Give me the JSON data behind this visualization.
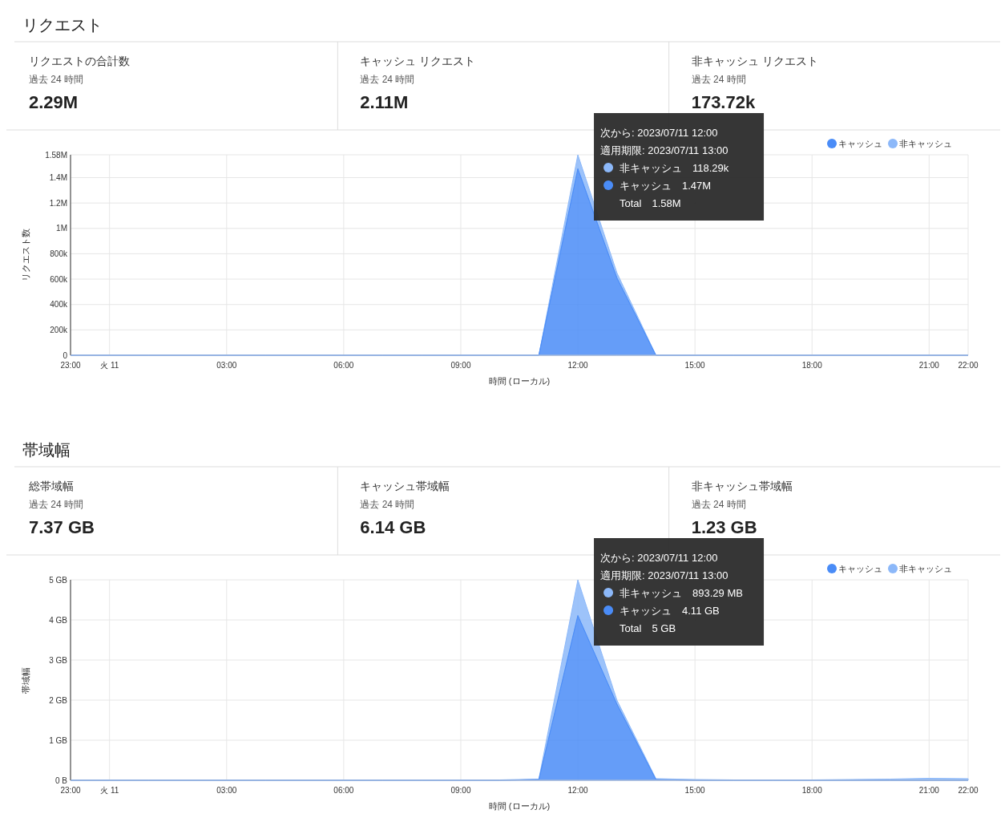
{
  "chart_data": [
    {
      "type": "other",
      "title": "リクエスト",
      "categories": [
        "リクエストの合計数",
        "キャッシュ リクエスト",
        "非キャッシュ リクエスト"
      ],
      "subtitle": "過去 24 時間",
      "value_labels": [
        "2.29M",
        "2.11M",
        "173.72k"
      ]
    },
    {
      "type": "area",
      "stacked": true,
      "ylabel": "リクエスト数",
      "xlabel": "時間 (ローカル)",
      "grid": true,
      "legend": "top right",
      "x": [
        "2023-07-10T23:00",
        "2023-07-11T00:00",
        "2023-07-11T01:00",
        "2023-07-11T02:00",
        "2023-07-11T03:00",
        "2023-07-11T04:00",
        "2023-07-11T05:00",
        "2023-07-11T06:00",
        "2023-07-11T07:00",
        "2023-07-11T08:00",
        "2023-07-11T09:00",
        "2023-07-11T10:00",
        "2023-07-11T11:00",
        "2023-07-11T12:00",
        "2023-07-11T13:00",
        "2023-07-11T14:00",
        "2023-07-11T15:00",
        "2023-07-11T16:00",
        "2023-07-11T17:00",
        "2023-07-11T18:00",
        "2023-07-11T19:00",
        "2023-07-11T20:00",
        "2023-07-11T21:00",
        "2023-07-11T22:00"
      ],
      "xlim": [
        "2023-07-10T23:00",
        "2023-07-11T22:00"
      ],
      "xticks": [
        {
          "value": "2023-07-10T23:00",
          "label": "23:00"
        },
        {
          "value": "2023-07-11T00:00",
          "label": "火 11"
        },
        {
          "value": "2023-07-11T03:00",
          "label": "03:00"
        },
        {
          "value": "2023-07-11T06:00",
          "label": "06:00"
        },
        {
          "value": "2023-07-11T09:00",
          "label": "09:00"
        },
        {
          "value": "2023-07-11T12:00",
          "label": "12:00"
        },
        {
          "value": "2023-07-11T15:00",
          "label": "15:00"
        },
        {
          "value": "2023-07-11T18:00",
          "label": "18:00"
        },
        {
          "value": "2023-07-11T21:00",
          "label": "21:00"
        },
        {
          "value": "2023-07-11T22:00",
          "label": "22:00"
        }
      ],
      "ylim": [
        0,
        1580000
      ],
      "yticks": [
        0,
        {
          "value": 200000,
          "label": "200k"
        },
        {
          "value": 400000,
          "label": "400k"
        },
        {
          "value": 600000,
          "label": "600k"
        },
        {
          "value": 800000,
          "label": "800k"
        },
        {
          "value": 1000000,
          "label": "1M"
        },
        {
          "value": 1200000,
          "label": "1.2M"
        },
        {
          "value": 1400000,
          "label": "1.4M"
        },
        {
          "value": 1580000,
          "label": "1.58M"
        }
      ],
      "series": [
        {
          "name": "キャッシュ",
          "color": "#4a8cf7",
          "values": [
            0,
            0,
            0,
            0,
            0,
            0,
            0,
            0,
            0,
            0,
            0,
            0,
            0,
            1470000,
            610000,
            0,
            0,
            0,
            0,
            0,
            0,
            0,
            0,
            0
          ]
        },
        {
          "name": "非キャッシュ",
          "color": "#8cb8f9",
          "values": [
            0,
            0,
            0,
            0,
            0,
            0,
            0,
            0,
            0,
            0,
            0,
            0,
            0,
            110000,
            40000,
            0,
            0,
            0,
            0,
            0,
            0,
            0,
            0,
            0
          ]
        }
      ],
      "annotations": [
        "次から: 2023/07/11 12:00",
        "適用期限: 2023/07/11 13:00",
        "非キャッシュ　118.29k",
        "キャッシュ　1.47M",
        "Total　1.58M"
      ]
    },
    {
      "type": "other",
      "title": "帯域幅",
      "categories": [
        "総帯域幅",
        "キャッシュ帯域幅",
        "非キャッシュ帯域幅"
      ],
      "subtitle": "過去 24 時間",
      "value_labels": [
        "7.37 GB",
        "6.14 GB",
        "1.23 GB"
      ]
    },
    {
      "type": "area",
      "stacked": true,
      "ylabel": "帯域幅",
      "xlabel": "時間 (ローカル)",
      "grid": true,
      "legend": "top right",
      "x": [
        "2023-07-10T23:00",
        "2023-07-11T00:00",
        "2023-07-11T01:00",
        "2023-07-11T02:00",
        "2023-07-11T03:00",
        "2023-07-11T04:00",
        "2023-07-11T05:00",
        "2023-07-11T06:00",
        "2023-07-11T07:00",
        "2023-07-11T08:00",
        "2023-07-11T09:00",
        "2023-07-11T10:00",
        "2023-07-11T11:00",
        "2023-07-11T12:00",
        "2023-07-11T13:00",
        "2023-07-11T14:00",
        "2023-07-11T15:00",
        "2023-07-11T16:00",
        "2023-07-11T17:00",
        "2023-07-11T18:00",
        "2023-07-11T19:00",
        "2023-07-11T20:00",
        "2023-07-11T21:00",
        "2023-07-11T22:00"
      ],
      "xlim": [
        "2023-07-10T23:00",
        "2023-07-11T22:00"
      ],
      "xticks": [
        {
          "value": "2023-07-10T23:00",
          "label": "23:00"
        },
        {
          "value": "2023-07-11T00:00",
          "label": "火 11"
        },
        {
          "value": "2023-07-11T03:00",
          "label": "03:00"
        },
        {
          "value": "2023-07-11T06:00",
          "label": "06:00"
        },
        {
          "value": "2023-07-11T09:00",
          "label": "09:00"
        },
        {
          "value": "2023-07-11T12:00",
          "label": "12:00"
        },
        {
          "value": "2023-07-11T15:00",
          "label": "15:00"
        },
        {
          "value": "2023-07-11T18:00",
          "label": "18:00"
        },
        {
          "value": "2023-07-11T21:00",
          "label": "21:00"
        },
        {
          "value": "2023-07-11T22:00",
          "label": "22:00"
        }
      ],
      "ylim": [
        0,
        5
      ],
      "yticks": [
        {
          "value": 0,
          "label": "0 B"
        },
        {
          "value": 1,
          "label": "1 GB"
        },
        {
          "value": 2,
          "label": "2 GB"
        },
        {
          "value": 3,
          "label": "3 GB"
        },
        {
          "value": 4,
          "label": "4 GB"
        },
        {
          "value": 5,
          "label": "5 GB"
        }
      ],
      "series": [
        {
          "name": "キャッシュ",
          "color": "#4a8cf7",
          "values": [
            0,
            0,
            0,
            0,
            0,
            0,
            0,
            0,
            0,
            0,
            0,
            0,
            0.02,
            4.11,
            1.9,
            0.02,
            0,
            0,
            0,
            0,
            0,
            0,
            0,
            0
          ]
        },
        {
          "name": "非キャッシュ",
          "color": "#8cb8f9",
          "values": [
            0.01,
            0.01,
            0.01,
            0.01,
            0.01,
            0.01,
            0.01,
            0.01,
            0.01,
            0.01,
            0.01,
            0.01,
            0.01,
            0.89,
            0.1,
            0.02,
            0.02,
            0.01,
            0.01,
            0.01,
            0.02,
            0.03,
            0.05,
            0.04
          ]
        }
      ],
      "annotations": [
        "次から: 2023/07/11 12:00",
        "適用期限: 2023/07/11 13:00",
        "非キャッシュ　893.29 MB",
        "キャッシュ　4.11 GB",
        "Total　5 GB"
      ]
    }
  ]
}
